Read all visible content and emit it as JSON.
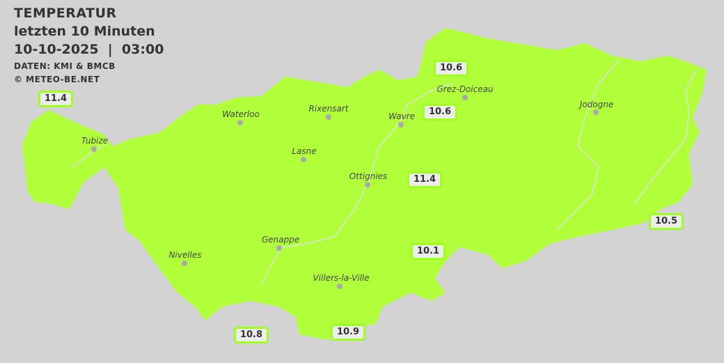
{
  "header": {
    "title": "TEMPERATUR",
    "subtitle": "letzten 10 Minuten",
    "datetime": "10-10-2025  |  03:00",
    "source": "DATEN: KMI & BMCB",
    "copyright": "© METEO-BE.NET"
  },
  "colors": {
    "background": "#d3d3d3",
    "region_fill": "#b0ff3a",
    "label_border": "#9dff1a"
  },
  "towns": [
    {
      "name": "Waterloo"
    },
    {
      "name": "Rixensart"
    },
    {
      "name": "Wavre"
    },
    {
      "name": "Grez-Doiceau"
    },
    {
      "name": "Jodogne"
    },
    {
      "name": "Tubize"
    },
    {
      "name": "Lasne"
    },
    {
      "name": "Ottignies"
    },
    {
      "name": "Genappe"
    },
    {
      "name": "Nivelles"
    },
    {
      "name": "Villers-la-Ville"
    }
  ],
  "readings": [
    "11.4",
    "10.6",
    "10.6",
    "11.4",
    "10.5",
    "10.1",
    "10.8",
    "10.9"
  ]
}
